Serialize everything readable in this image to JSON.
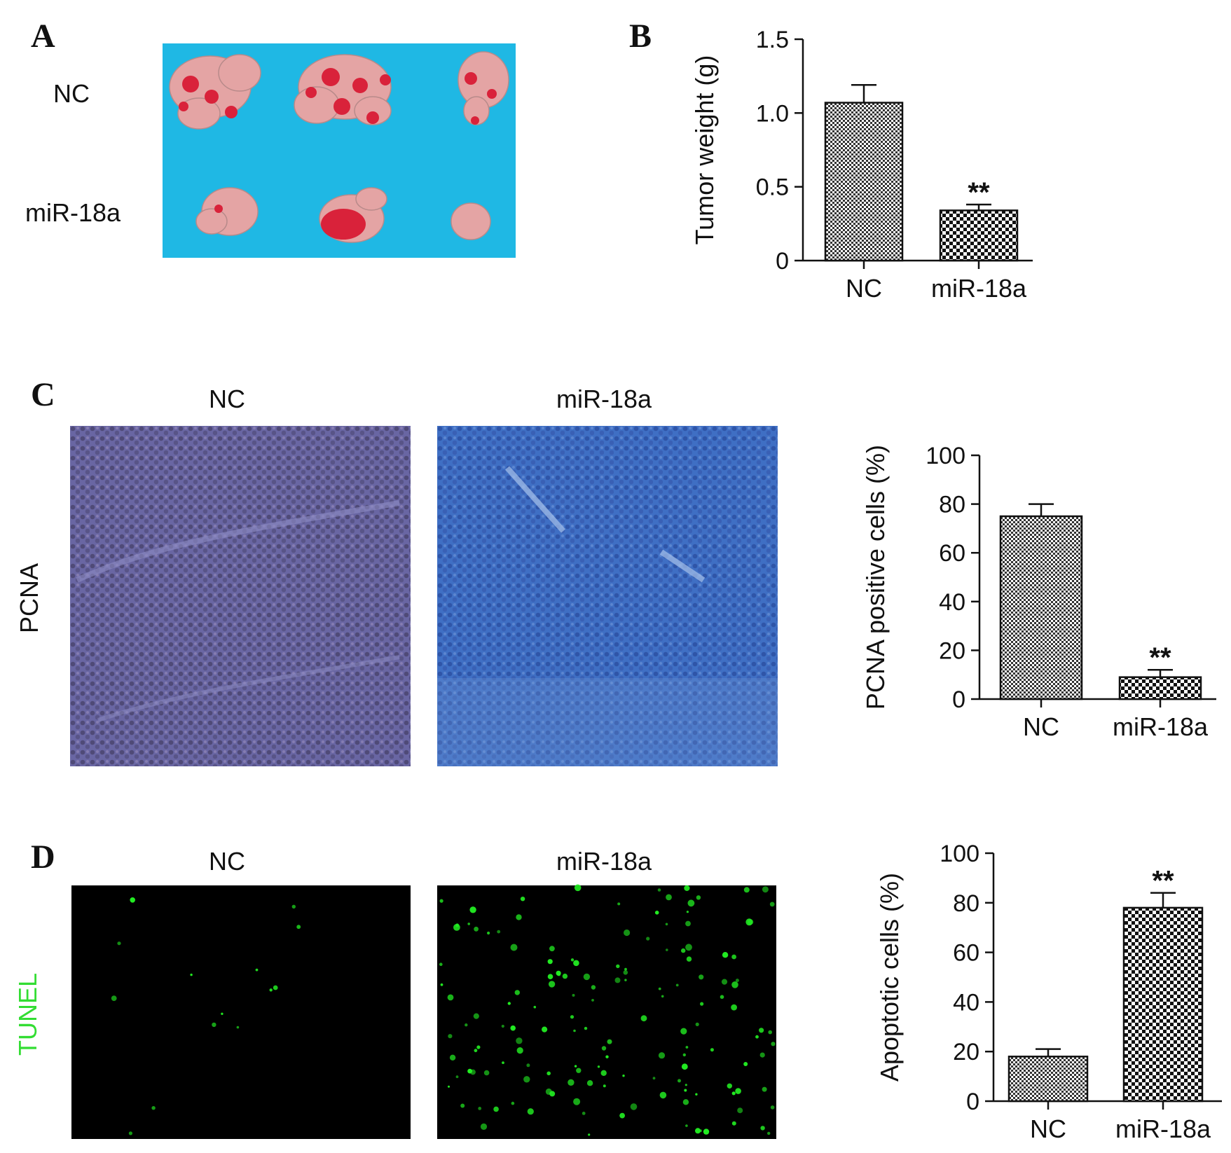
{
  "panels": {
    "a": {
      "letter": "A",
      "row_labels": [
        "NC",
        "miR-18a"
      ],
      "photo_bg": "#1fb8e4",
      "tumor_color": "#e4a4a4",
      "blood_color": "#d9223a"
    },
    "b": {
      "letter": "B"
    },
    "c": {
      "letter": "C",
      "col_labels": [
        "NC",
        "miR-18a"
      ],
      "row_label": "PCNA"
    },
    "d": {
      "letter": "D",
      "col_labels": [
        "NC",
        "miR-18a"
      ],
      "row_label": "TUNEL",
      "row_label_color": "#33dd33"
    }
  },
  "colors": {
    "tunel_dot": "#22ee22",
    "pcna_nc_bg": "#5b5fa0",
    "pcna_mir_bg": "#3f6fc4",
    "bar_edge": "#111111"
  },
  "chart_data": [
    {
      "panel": "B",
      "type": "bar",
      "categories": [
        "NC",
        "miR-18a"
      ],
      "values": [
        1.07,
        0.34
      ],
      "errors": [
        0.12,
        0.04
      ],
      "significance": [
        "",
        "**"
      ],
      "ylabel": "Tumor weight (g)",
      "ylim": [
        0,
        1.5
      ],
      "yticks": [
        0,
        0.5,
        1.0,
        1.5
      ],
      "ytick_labels": [
        "0",
        "0.5",
        "1.0",
        "1.5"
      ],
      "grid": false
    },
    {
      "panel": "C",
      "type": "bar",
      "categories": [
        "NC",
        "miR-18a"
      ],
      "values": [
        75,
        9
      ],
      "errors": [
        5,
        3
      ],
      "significance": [
        "",
        "**"
      ],
      "ylabel": "PCNA positive cells (%)",
      "ylim": [
        0,
        100
      ],
      "yticks": [
        0,
        20,
        40,
        60,
        80,
        100
      ],
      "ytick_labels": [
        "0",
        "20",
        "40",
        "60",
        "80",
        "100"
      ],
      "grid": false
    },
    {
      "panel": "D",
      "type": "bar",
      "categories": [
        "NC",
        "miR-18a"
      ],
      "values": [
        18,
        78
      ],
      "errors": [
        3,
        6
      ],
      "significance": [
        "",
        "**"
      ],
      "ylabel": "Apoptotic cells (%)",
      "ylim": [
        0,
        100
      ],
      "yticks": [
        0,
        20,
        40,
        60,
        80,
        100
      ],
      "ytick_labels": [
        "0",
        "20",
        "40",
        "60",
        "80",
        "100"
      ],
      "grid": false
    }
  ]
}
